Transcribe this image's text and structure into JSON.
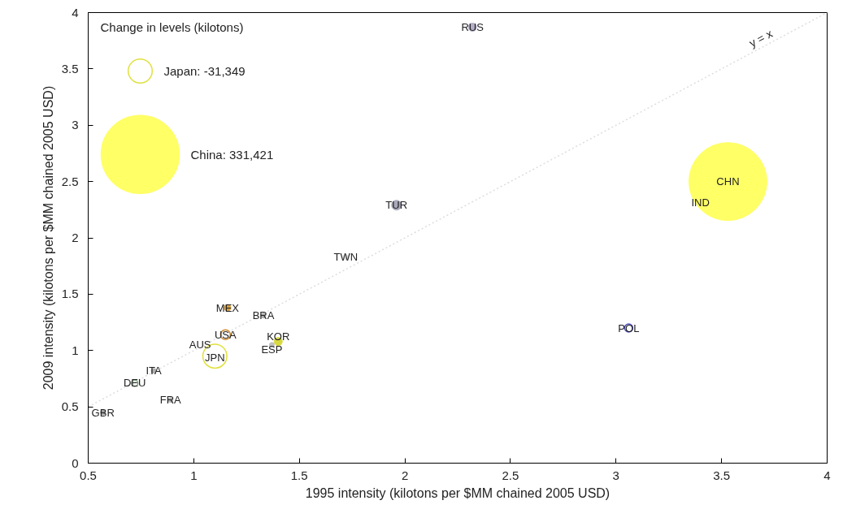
{
  "chart_data": {
    "type": "bubble",
    "xlabel": "1995 intensity (kilotons per $MM chained 2005 USD)",
    "ylabel": "2009 intensity (kilotons per $MM chained 2005 USD)",
    "legend_title": "Change in levels (kilotons)",
    "xlim": [
      0.5,
      4
    ],
    "ylim": [
      0,
      4
    ],
    "xticks": [
      0.5,
      1,
      1.5,
      2,
      2.5,
      3,
      3.5,
      4
    ],
    "yticks": [
      0,
      0.5,
      1,
      1.5,
      2,
      2.5,
      3,
      3.5,
      4
    ],
    "size_legend": [
      {
        "value": 31349,
        "label": "Japan: -31,349"
      },
      {
        "value": 331421,
        "label": "China: 331,421"
      }
    ],
    "series": [
      {
        "x": [
          2.32,
          1.96,
          1.72,
          3.53,
          1.16,
          1.33,
          1.4,
          1.37,
          0.81,
          0.89,
          0.57
        ],
        "values": [
          3.87,
          2.29,
          1.83,
          2.5,
          1.38,
          1.31,
          1.08,
          1.05,
          0.82,
          0.56,
          0.45
        ],
        "sizes": [
          3600,
          5200,
          1300,
          331421,
          2300,
          1300,
          3600,
          1300,
          1300,
          1300,
          1300
        ],
        "colors": [
          "#b4aec8",
          "#a9a9bb",
          "#dcdcdc",
          "#ffff66",
          "#d9a040",
          "#b0b0b0",
          "#d8d840",
          "#c0c0c0",
          "#b0b0b0",
          "#b8b8b8",
          "#a0a0a0"
        ]
      },
      {
        "line_style": "solid",
        "x": [
          3.06,
          1.15,
          1.1,
          0.72
        ],
        "values": [
          1.2,
          1.14,
          0.95,
          0.71
        ],
        "sizes": [
          3600,
          5200,
          31349,
          2300
        ],
        "colors": [
          "#5050c0",
          "#d08a30",
          "#e0e040",
          "#70a070"
        ]
      },
      {
        "type": "line",
        "x": [
          0.5,
          4
        ],
        "values": [
          0.5,
          4
        ],
        "color": "#dddddd",
        "line_style": "dotted"
      }
    ],
    "annotations": [
      {
        "text": "RUS",
        "x": 2.32,
        "y": 3.87
      },
      {
        "text": "TUR",
        "x": 1.96,
        "y": 2.29
      },
      {
        "text": "TWN",
        "x": 1.72,
        "y": 1.83
      },
      {
        "text": "CHN",
        "x": 3.53,
        "y": 2.5
      },
      {
        "text": "IND",
        "x": 3.4,
        "y": 2.31
      },
      {
        "text": "POL",
        "x": 3.06,
        "y": 1.2
      },
      {
        "text": "MEX",
        "x": 1.16,
        "y": 1.38
      },
      {
        "text": "BRA",
        "x": 1.33,
        "y": 1.31
      },
      {
        "text": "USA",
        "x": 1.15,
        "y": 1.14
      },
      {
        "text": "KOR",
        "x": 1.4,
        "y": 1.08
      },
      {
        "text": "ESP",
        "x": 1.37,
        "y": 1.05
      },
      {
        "text": "AUS",
        "x": 1.03,
        "y": 1.04
      },
      {
        "text": "JPN",
        "x": 1.1,
        "y": 0.95
      },
      {
        "text": "ITA",
        "x": 0.81,
        "y": 0.82
      },
      {
        "text": "DEU",
        "x": 0.72,
        "y": 0.71
      },
      {
        "text": "FRA",
        "x": 0.89,
        "y": 0.56
      },
      {
        "text": "GBR",
        "x": 0.57,
        "y": 0.45
      },
      {
        "text": "y = x",
        "x": 3.7,
        "y": 3.7
      }
    ]
  }
}
